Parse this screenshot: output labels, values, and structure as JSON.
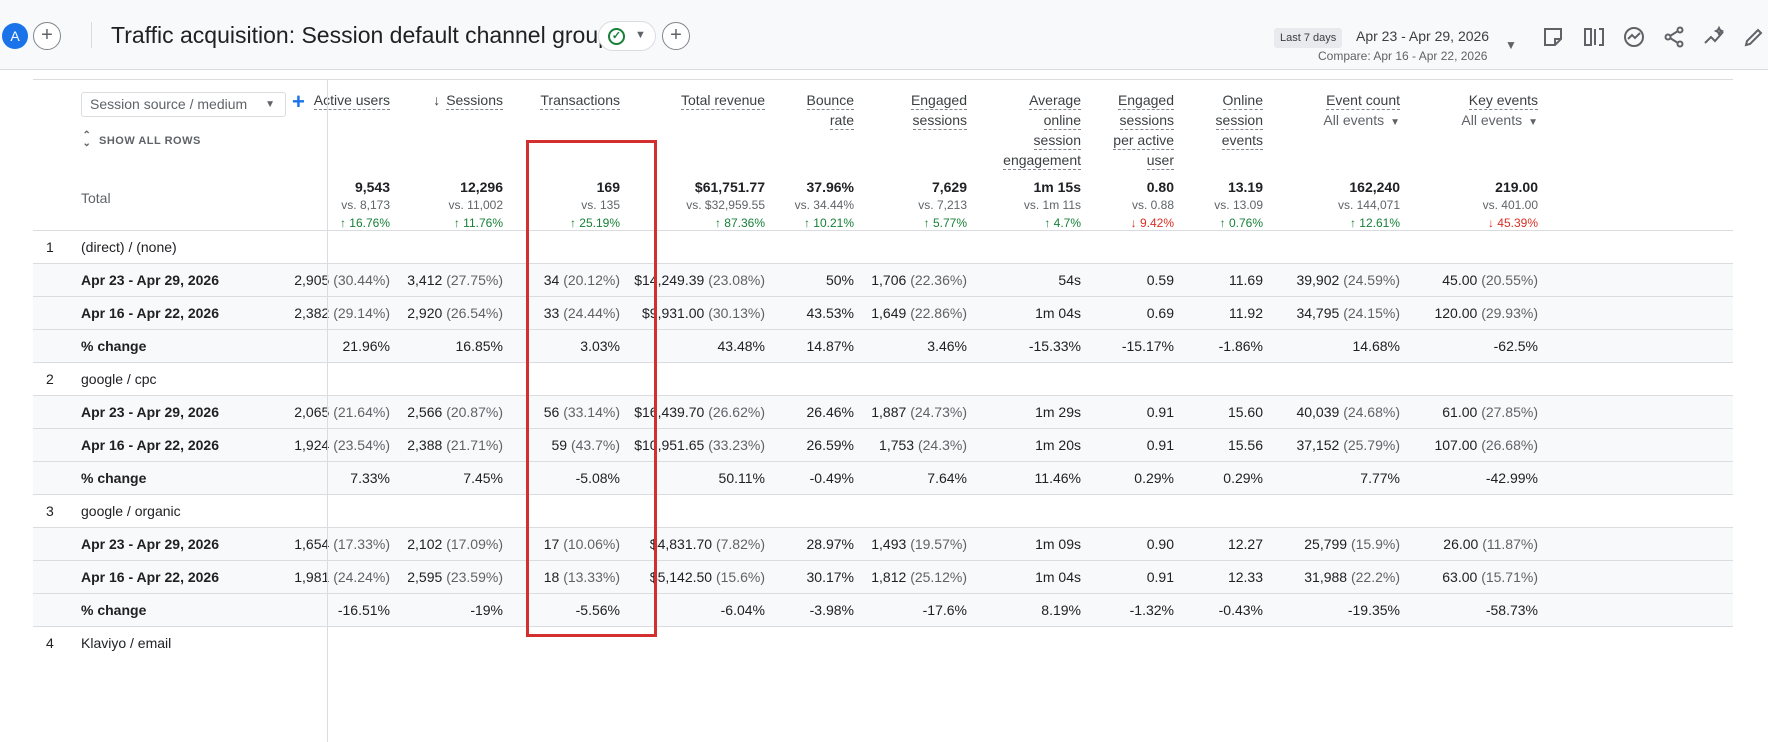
{
  "header": {
    "avatar_letter": "A",
    "title": "Traffic acquisition: Session default channel group",
    "date_label": "Last 7 days",
    "date_range": "Apr 23 - Apr 29, 2026",
    "compare_range": "Compare: Apr 16 - Apr 22, 2026",
    "toolbar_icons": [
      "edit-note-icon",
      "compare-columns-icon",
      "insights-chart-icon",
      "share-icon",
      "sparkle-trend-icon",
      "pencil-icon"
    ]
  },
  "table": {
    "dimension_select": "Session source / medium",
    "show_all_rows": "SHOW ALL ROWS",
    "total_label": "Total",
    "columns": [
      {
        "lines": [
          "Active users"
        ]
      },
      {
        "lines": [
          "Sessions"
        ],
        "sorted": true
      },
      {
        "lines": [
          "Transactions"
        ]
      },
      {
        "lines": [
          "Total revenue"
        ]
      },
      {
        "lines": [
          "Bounce",
          "rate"
        ]
      },
      {
        "lines": [
          "Engaged",
          "sessions"
        ]
      },
      {
        "lines": [
          "Average",
          "online",
          "session",
          "engagement"
        ]
      },
      {
        "lines": [
          "Engaged",
          "sessions",
          "per active",
          "user"
        ]
      },
      {
        "lines": [
          "Online",
          "session",
          "events"
        ]
      },
      {
        "lines": [
          "Event count"
        ],
        "sub": "All events"
      },
      {
        "lines": [
          "Key events"
        ],
        "sub": "All events"
      }
    ],
    "totals": [
      {
        "value": "9,543",
        "compare": "vs. 8,173",
        "change": "↑ 16.76%",
        "dir": "up"
      },
      {
        "value": "12,296",
        "compare": "vs. 11,002",
        "change": "↑ 11.76%",
        "dir": "up"
      },
      {
        "value": "169",
        "compare": "vs. 135",
        "change": "↑ 25.19%",
        "dir": "up"
      },
      {
        "value": "$61,751.77",
        "compare": "vs. $32,959.55",
        "change": "↑ 87.36%",
        "dir": "up"
      },
      {
        "value": "37.96%",
        "compare": "vs. 34.44%",
        "change": "↑ 10.21%",
        "dir": "up"
      },
      {
        "value": "7,629",
        "compare": "vs. 7,213",
        "change": "↑ 5.77%",
        "dir": "up"
      },
      {
        "value": "1m 15s",
        "compare": "vs. 1m 11s",
        "change": "↑ 4.7%",
        "dir": "up"
      },
      {
        "value": "0.80",
        "compare": "vs. 0.88",
        "change": "↓ 9.42%",
        "dir": "down"
      },
      {
        "value": "13.19",
        "compare": "vs. 13.09",
        "change": "↑ 0.76%",
        "dir": "up"
      },
      {
        "value": "162,240",
        "compare": "vs. 144,071",
        "change": "↑ 12.61%",
        "dir": "up"
      },
      {
        "value": "219.00",
        "compare": "vs. 401.00",
        "change": "↓ 45.39%",
        "dir": "down"
      }
    ],
    "rows": [
      {
        "kind": "group",
        "num": "1",
        "label": "(direct) / (none)"
      },
      {
        "kind": "data",
        "label": "Apr 23 - Apr 29, 2026",
        "cells": [
          [
            "2,905",
            "(30.44%)"
          ],
          [
            "3,412",
            "(27.75%)"
          ],
          [
            "34",
            "(20.12%)"
          ],
          [
            "$14,249.39",
            "(23.08%)"
          ],
          [
            "50%",
            ""
          ],
          [
            "1,706",
            "(22.36%)"
          ],
          [
            "54s",
            ""
          ],
          [
            "0.59",
            ""
          ],
          [
            "11.69",
            ""
          ],
          [
            "39,902",
            "(24.59%)"
          ],
          [
            "45.00",
            "(20.55%)"
          ]
        ]
      },
      {
        "kind": "data",
        "label": "Apr 16 - Apr 22, 2026",
        "cells": [
          [
            "2,382",
            "(29.14%)"
          ],
          [
            "2,920",
            "(26.54%)"
          ],
          [
            "33",
            "(24.44%)"
          ],
          [
            "$9,931.00",
            "(30.13%)"
          ],
          [
            "43.53%",
            ""
          ],
          [
            "1,649",
            "(22.86%)"
          ],
          [
            "1m 04s",
            ""
          ],
          [
            "0.69",
            ""
          ],
          [
            "11.92",
            ""
          ],
          [
            "34,795",
            "(24.15%)"
          ],
          [
            "120.00",
            "(29.93%)"
          ]
        ]
      },
      {
        "kind": "data",
        "label": "% change",
        "cells": [
          [
            "21.96%",
            ""
          ],
          [
            "16.85%",
            ""
          ],
          [
            "3.03%",
            ""
          ],
          [
            "43.48%",
            ""
          ],
          [
            "14.87%",
            ""
          ],
          [
            "3.46%",
            ""
          ],
          [
            "-15.33%",
            ""
          ],
          [
            "-15.17%",
            ""
          ],
          [
            "-1.86%",
            ""
          ],
          [
            "14.68%",
            ""
          ],
          [
            "-62.5%",
            ""
          ]
        ]
      },
      {
        "kind": "group",
        "num": "2",
        "label": "google / cpc"
      },
      {
        "kind": "data",
        "label": "Apr 23 - Apr 29, 2026",
        "cells": [
          [
            "2,065",
            "(21.64%)"
          ],
          [
            "2,566",
            "(20.87%)"
          ],
          [
            "56",
            "(33.14%)"
          ],
          [
            "$16,439.70",
            "(26.62%)"
          ],
          [
            "26.46%",
            ""
          ],
          [
            "1,887",
            "(24.73%)"
          ],
          [
            "1m 29s",
            ""
          ],
          [
            "0.91",
            ""
          ],
          [
            "15.60",
            ""
          ],
          [
            "40,039",
            "(24.68%)"
          ],
          [
            "61.00",
            "(27.85%)"
          ]
        ]
      },
      {
        "kind": "data",
        "label": "Apr 16 - Apr 22, 2026",
        "cells": [
          [
            "1,924",
            "(23.54%)"
          ],
          [
            "2,388",
            "(21.71%)"
          ],
          [
            "59",
            "(43.7%)"
          ],
          [
            "$10,951.65",
            "(33.23%)"
          ],
          [
            "26.59%",
            ""
          ],
          [
            "1,753",
            "(24.3%)"
          ],
          [
            "1m 20s",
            ""
          ],
          [
            "0.91",
            ""
          ],
          [
            "15.56",
            ""
          ],
          [
            "37,152",
            "(25.79%)"
          ],
          [
            "107.00",
            "(26.68%)"
          ]
        ]
      },
      {
        "kind": "data",
        "label": "% change",
        "cells": [
          [
            "7.33%",
            ""
          ],
          [
            "7.45%",
            ""
          ],
          [
            "-5.08%",
            ""
          ],
          [
            "50.11%",
            ""
          ],
          [
            "-0.49%",
            ""
          ],
          [
            "7.64%",
            ""
          ],
          [
            "11.46%",
            ""
          ],
          [
            "0.29%",
            ""
          ],
          [
            "0.29%",
            ""
          ],
          [
            "7.77%",
            ""
          ],
          [
            "-42.99%",
            ""
          ]
        ]
      },
      {
        "kind": "group",
        "num": "3",
        "label": "google / organic"
      },
      {
        "kind": "data",
        "label": "Apr 23 - Apr 29, 2026",
        "cells": [
          [
            "1,654",
            "(17.33%)"
          ],
          [
            "2,102",
            "(17.09%)"
          ],
          [
            "17",
            "(10.06%)"
          ],
          [
            "$4,831.70",
            "(7.82%)"
          ],
          [
            "28.97%",
            ""
          ],
          [
            "1,493",
            "(19.57%)"
          ],
          [
            "1m 09s",
            ""
          ],
          [
            "0.90",
            ""
          ],
          [
            "12.27",
            ""
          ],
          [
            "25,799",
            "(15.9%)"
          ],
          [
            "26.00",
            "(11.87%)"
          ]
        ]
      },
      {
        "kind": "data",
        "label": "Apr 16 - Apr 22, 2026",
        "cells": [
          [
            "1,981",
            "(24.24%)"
          ],
          [
            "2,595",
            "(23.59%)"
          ],
          [
            "18",
            "(13.33%)"
          ],
          [
            "$5,142.50",
            "(15.6%)"
          ],
          [
            "30.17%",
            ""
          ],
          [
            "1,812",
            "(25.12%)"
          ],
          [
            "1m 04s",
            ""
          ],
          [
            "0.91",
            ""
          ],
          [
            "12.33",
            ""
          ],
          [
            "31,988",
            "(22.2%)"
          ],
          [
            "63.00",
            "(15.71%)"
          ]
        ]
      },
      {
        "kind": "data",
        "label": "% change",
        "cells": [
          [
            "-16.51%",
            ""
          ],
          [
            "-19%",
            ""
          ],
          [
            "-5.56%",
            ""
          ],
          [
            "-6.04%",
            ""
          ],
          [
            "-3.98%",
            ""
          ],
          [
            "-17.6%",
            ""
          ],
          [
            "8.19%",
            ""
          ],
          [
            "-1.32%",
            ""
          ],
          [
            "-0.43%",
            ""
          ],
          [
            "-19.35%",
            ""
          ],
          [
            "-58.73%",
            ""
          ]
        ]
      },
      {
        "kind": "group",
        "num": "4",
        "label": "Klaviyo / email"
      }
    ]
  },
  "colors": {
    "accent_blue": "#1a73e8",
    "positive_green": "#188038",
    "negative_red": "#d93025",
    "highlight_box": "#d32f2f"
  }
}
